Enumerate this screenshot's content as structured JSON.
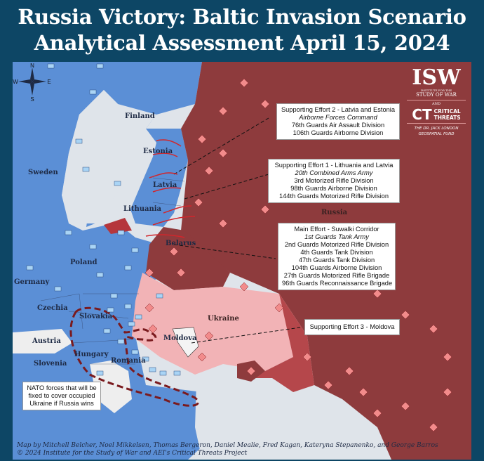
{
  "title": {
    "line1": "Russia Victory: Baltic Invasion Scenario",
    "line2": "Analytical Assessment April 15, 2024"
  },
  "compass": {
    "n": "N",
    "e": "E",
    "s": "S",
    "w": "W"
  },
  "logo": {
    "isw": "ISW",
    "isw_sub1": "INSTITUTE FOR THE",
    "isw_sub2": "STUDY OF WAR",
    "and": "AND",
    "ct": "CT",
    "ct_line1": "CRITICAL",
    "ct_line2": "THREATS",
    "fund1": "THE DR. JACK LONDON",
    "fund2": "GEOSPATIAL FUND"
  },
  "countries": {
    "finland": "Finland",
    "estonia": "Estonia",
    "sweden": "Sweden",
    "latvia": "Latvia",
    "lithuania": "Lithuania",
    "belarus": "Belarus",
    "russia": "Russia",
    "poland": "Poland",
    "germany": "Germany",
    "czechia": "Czechia",
    "slovakia": "Slovakia",
    "austria": "Austria",
    "hungary": "Hungary",
    "romania": "Romania",
    "moldova": "Moldova",
    "ukraine": "Ukraine",
    "slovenia": "Slovenia"
  },
  "callouts": {
    "se2": {
      "title": "Supporting Effort 2 - Latvia and Estonia",
      "command": "Airborne Forces Command",
      "units": [
        "76th Guards Air Assault Division",
        "106th Guards Airborne Division"
      ]
    },
    "se1": {
      "title": "Supporting Effort 1 - Lithuania and Latvia",
      "command": "20th Combined Arms Army",
      "units": [
        "3rd Motorized Rifle Division",
        "98th Guards Airborne Division",
        "144th Guards Motorized Rifle Division"
      ]
    },
    "main": {
      "title": "Main Effort - Suwalki Corridor",
      "command": "1st Guards Tank Army",
      "units": [
        "2nd Guards Motorized Rifle Division",
        "4th Guards Tank Division",
        "47th Guards Tank Division",
        "104th Guards Airborne Division",
        "27th Guards Motorized Rifle Brigade",
        "96th Guards Reconnaissance Brigade"
      ]
    },
    "se3": {
      "title": "Supporting Effort 3 - Moldova"
    },
    "nato": {
      "text": "NATO forces that will be fixed to cover occupied Ukraine if Russia wins"
    }
  },
  "credits": {
    "line1": "Map by Mitchell Belcher, Noel Mikkelsen, Thomas Bergeron, Daniel Mealie, Fred Kagan, Kateryna Stepanenko, and George Barros",
    "line2": "© 2024 Institute for the Study of War and AEI's Critical Threats Project"
  },
  "colors": {
    "background": "#0d4665",
    "nato": "#5b8fd6",
    "russia": "#8e3b3d",
    "ukraine": "#f2b3b6",
    "occupied": "#b5474b",
    "neutral": "#eeeeee",
    "water": "#dfe4ea"
  }
}
